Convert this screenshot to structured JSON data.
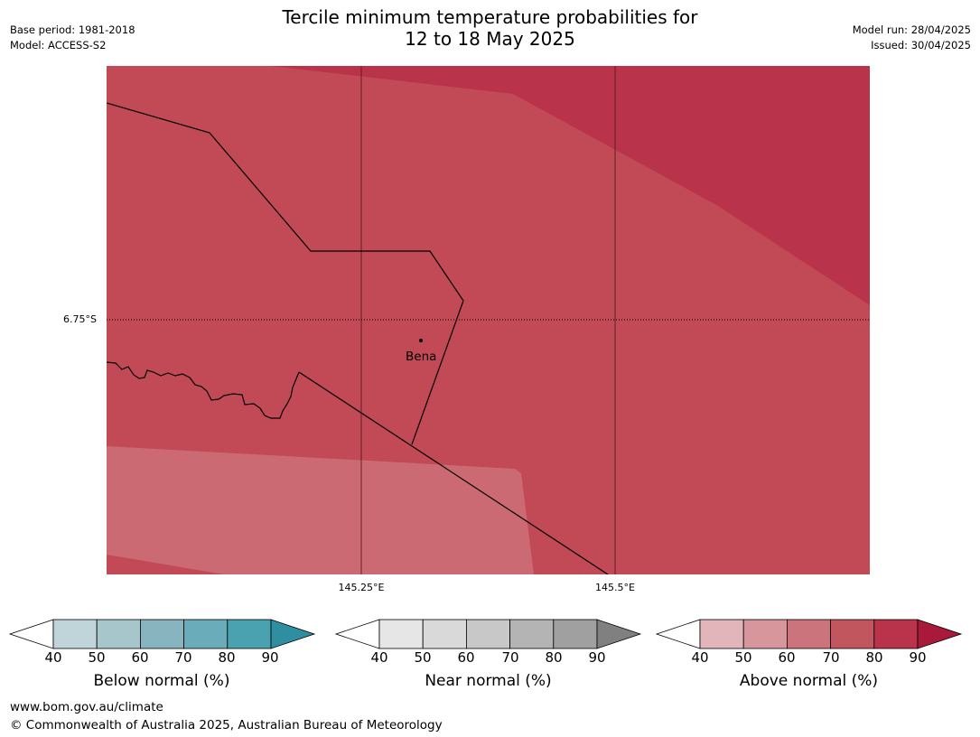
{
  "header": {
    "title_line1": "Tercile minimum temperature probabilities for",
    "title_line2": "12 to 18 May 2025",
    "base_period": "Base period: 1981-2018",
    "model": "Model: ACCESS-S2",
    "model_run": "Model run: 28/04/2025",
    "issued": "Issued: 30/04/2025"
  },
  "map": {
    "latitude_label": "6.75°S",
    "longitude_labels": [
      "145.25°E",
      "145.5°E"
    ],
    "place_label": "Bena",
    "region_colors": {
      "above_60_70": "#cb6a73",
      "above_70_80": "#c14a56",
      "above_80_90": "#b9344a"
    }
  },
  "colorbars": [
    {
      "label": "Below normal (%)",
      "ticks": [
        "40",
        "50",
        "60",
        "70",
        "80",
        "90"
      ],
      "colors": [
        "#ffffff",
        "#bfd5da",
        "#a6c6cb",
        "#88b4bf",
        "#6aacb9",
        "#4aa1b0",
        "#2f8fa0"
      ]
    },
    {
      "label": "Near normal (%)",
      "ticks": [
        "40",
        "50",
        "60",
        "70",
        "80",
        "90"
      ],
      "colors": [
        "#ffffff",
        "#e6e6e6",
        "#d9d9d9",
        "#c8c8c8",
        "#b4b4b4",
        "#a0a0a0",
        "#808080"
      ]
    },
    {
      "label": "Above normal (%)",
      "ticks": [
        "40",
        "50",
        "60",
        "70",
        "80",
        "90"
      ],
      "colors": [
        "#ffffff",
        "#e2b5ba",
        "#d7959c",
        "#cc747c",
        "#c2565f",
        "#b9344a",
        "#a8193a"
      ]
    }
  ],
  "footer": {
    "url": "www.bom.gov.au/climate",
    "copyright": "© Commonwealth of Australia 2025, Australian Bureau of Meteorology"
  }
}
